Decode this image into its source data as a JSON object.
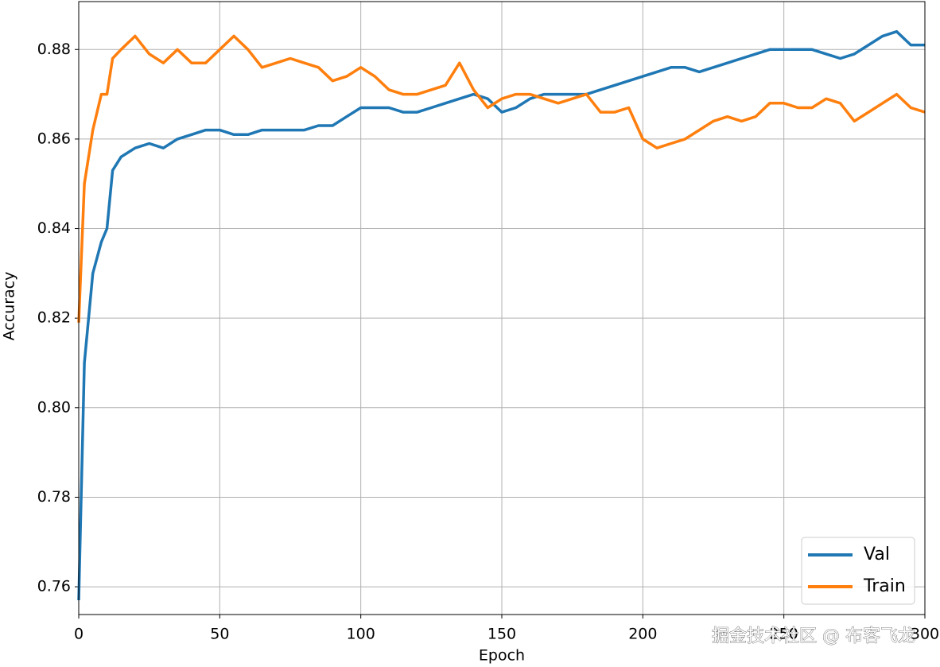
{
  "chart_data": {
    "type": "line",
    "xlabel": "Epoch",
    "ylabel": "Accuracy",
    "x": [
      0,
      2,
      5,
      8,
      10,
      12,
      15,
      20,
      25,
      30,
      35,
      40,
      45,
      50,
      55,
      60,
      65,
      70,
      75,
      80,
      85,
      90,
      95,
      100,
      105,
      110,
      115,
      120,
      125,
      130,
      135,
      140,
      145,
      150,
      155,
      160,
      165,
      170,
      175,
      180,
      185,
      190,
      195,
      200,
      205,
      210,
      215,
      220,
      225,
      230,
      235,
      240,
      245,
      250,
      255,
      260,
      265,
      270,
      275,
      280,
      285,
      290,
      295,
      300
    ],
    "series": [
      {
        "name": "Val",
        "color": "#1f77b4",
        "values": [
          0.757,
          0.81,
          0.83,
          0.837,
          0.84,
          0.853,
          0.856,
          0.858,
          0.859,
          0.858,
          0.86,
          0.861,
          0.862,
          0.862,
          0.861,
          0.861,
          0.862,
          0.862,
          0.862,
          0.862,
          0.863,
          0.863,
          0.865,
          0.867,
          0.867,
          0.867,
          0.866,
          0.866,
          0.867,
          0.868,
          0.869,
          0.87,
          0.869,
          0.866,
          0.867,
          0.869,
          0.87,
          0.87,
          0.87,
          0.87,
          0.871,
          0.872,
          0.873,
          0.874,
          0.875,
          0.876,
          0.876,
          0.875,
          0.876,
          0.877,
          0.878,
          0.879,
          0.88,
          0.88,
          0.88,
          0.88,
          0.879,
          0.878,
          0.879,
          0.881,
          0.883,
          0.884,
          0.881,
          0.881
        ]
      },
      {
        "name": "Train",
        "color": "#ff7f0e",
        "values": [
          0.819,
          0.85,
          0.862,
          0.87,
          0.87,
          0.878,
          0.88,
          0.883,
          0.879,
          0.877,
          0.88,
          0.877,
          0.877,
          0.88,
          0.883,
          0.88,
          0.876,
          0.877,
          0.878,
          0.877,
          0.876,
          0.873,
          0.874,
          0.876,
          0.874,
          0.871,
          0.87,
          0.87,
          0.871,
          0.872,
          0.877,
          0.871,
          0.867,
          0.869,
          0.87,
          0.87,
          0.869,
          0.868,
          0.869,
          0.87,
          0.866,
          0.866,
          0.867,
          0.86,
          0.858,
          0.859,
          0.86,
          0.862,
          0.864,
          0.865,
          0.864,
          0.865,
          0.868,
          0.868,
          0.867,
          0.867,
          0.869,
          0.868,
          0.864,
          0.866,
          0.868,
          0.87,
          0.867,
          0.866
        ]
      }
    ],
    "xlim": [
      0,
      300
    ],
    "xticks": [
      0,
      50,
      100,
      150,
      200,
      250,
      300
    ],
    "ylim": [
      0.7538,
      0.8907
    ],
    "yticks": [
      0.76,
      0.78,
      {
        "value": 0.8,
        "label": "0.80"
      },
      0.82,
      0.84,
      0.86,
      0.88
    ],
    "grid": true,
    "legend": "lower right"
  },
  "watermark": "掘金技术社区 @ 布客飞龙"
}
